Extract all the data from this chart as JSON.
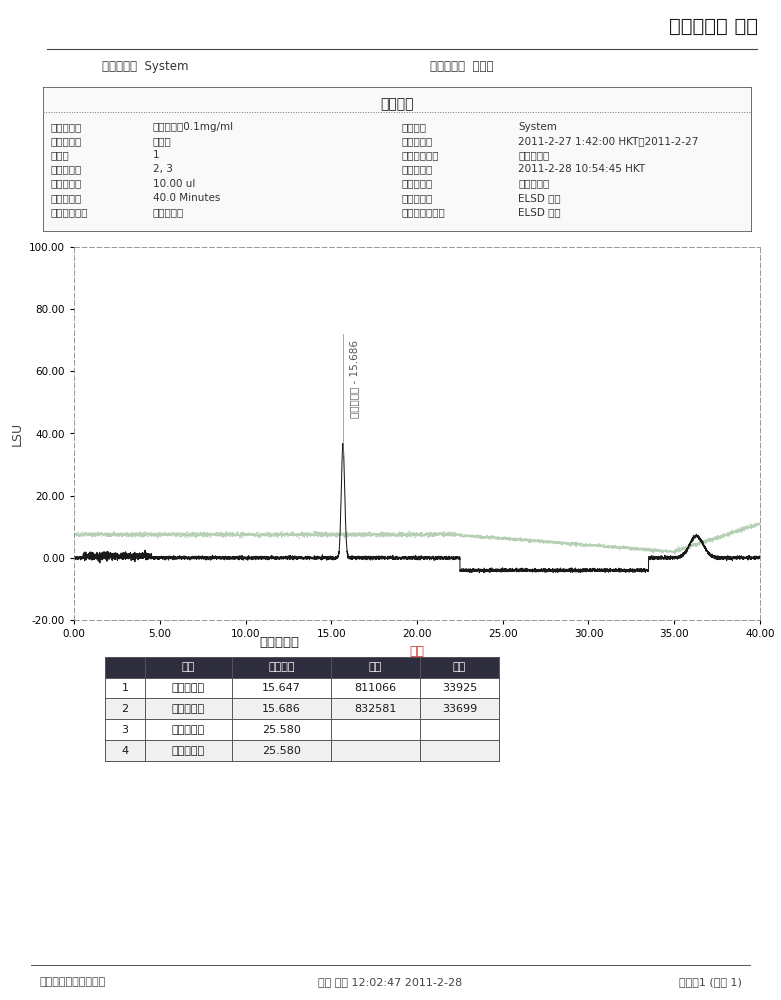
{
  "title": "胆酸钠报告 报告",
  "user_label": "用户名称：",
  "user_value": "System",
  "project_label": "项目名称：",
  "project_value": "胆酸钠",
  "sample_info_title": "样品信息",
  "sample_fields_left": [
    [
      "样品名称：",
      "猪去氧胆酸0.1mg/ml"
    ],
    [
      "样品类型：",
      "标准样"
    ],
    [
      "瓶号：",
      "1"
    ],
    [
      "进样次数：",
      "2, 3"
    ],
    [
      "进样体积：",
      "10.00 ul"
    ],
    [
      "运行时间：",
      "40.0 Minutes"
    ],
    [
      "样品组名称：",
      "胆酸钠对照"
    ]
  ],
  "sample_fields_right": [
    [
      "采集者：",
      "System"
    ],
    [
      "采集时间：",
      "2011-2-27 1:42:00 HKT，2011-2-27"
    ],
    [
      "采集方法组：",
      "胆酸钠梯度"
    ],
    [
      "处理日期：",
      "2011-2-28 10:54:45 HKT"
    ],
    [
      "处理方法：",
      "胆酸钠处理"
    ],
    [
      "通道名称：",
      "ELSD 信号"
    ],
    [
      "处理通道注释：",
      "ELSD 信号"
    ]
  ],
  "chromatogram_title": "色谱峰结果",
  "table_headers": [
    "",
    "名字",
    "保留时间",
    "面积",
    "峰高"
  ],
  "table_rows": [
    [
      "1",
      "猪去氧胆酸",
      "15.647",
      "811066",
      "33925"
    ],
    [
      "2",
      "猪去氧胆酸",
      "15.686",
      "832581",
      "33699"
    ],
    [
      "3",
      "鹅去氧胆酸",
      "25.580",
      "",
      ""
    ],
    [
      "4",
      "鹅去氧胆酸",
      "25.580",
      "",
      ""
    ]
  ],
  "xmin": 0.0,
  "xmax": 40.0,
  "ymin": -20.0,
  "ymax": 100.0,
  "xlabel": "分钟",
  "ylabel": "LSU",
  "peak_label": "猪去氧胆酸 - 15.686",
  "peak_x": 15.686,
  "peak_y": 33.0,
  "footer_left": "报告方法：胆酸钠报告",
  "footer_center": "打印 下午 12:02:47 2011-2-28",
  "footer_right": "页码：1 (共计 1)",
  "bg_color": "#ffffff",
  "line_color_black": "#1a1a1a",
  "line_color_green": "#a8c8a8",
  "text_color": "#333333",
  "yticks": [
    -20,
    0,
    20,
    40,
    60,
    80,
    100
  ],
  "xticks": [
    0.0,
    5.0,
    10.0,
    15.0,
    20.0,
    25.0,
    30.0,
    35.0,
    40.0
  ]
}
